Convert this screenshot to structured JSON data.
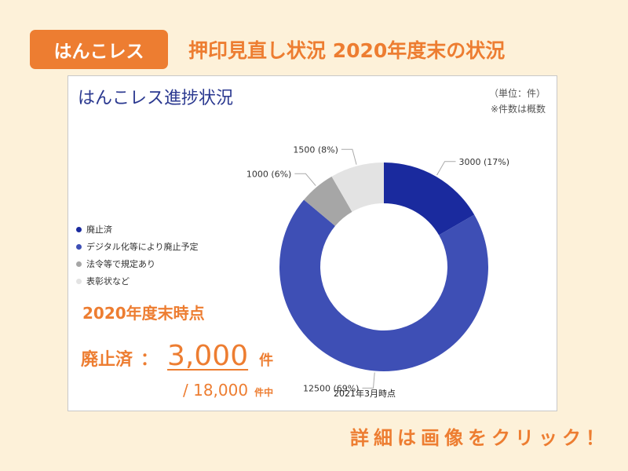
{
  "badge": {
    "label": "はんこレス"
  },
  "headline": "押印見直し状況 2020年度末の状況",
  "panel": {
    "title": "はんこレス進捗状況",
    "unit_line1": "（単位：件）",
    "unit_line2": "※件数は概数",
    "caption": "2021年3月時点"
  },
  "summary": {
    "heading": "2020年度末時点",
    "label": "廃止済",
    "colon": "：",
    "value": "3,000",
    "unit": "件",
    "total_value": "/ 18,000",
    "total_unit": "件中"
  },
  "cta": "詳細は画像をクリック！",
  "chart_data": {
    "type": "pie",
    "categories": [
      "廃止済",
      "デジタル化等により廃止予定",
      "法令等で規定あり",
      "表彰状など"
    ],
    "values": [
      3000,
      12500,
      1000,
      1500
    ],
    "data_labels": [
      "3000 (17%)",
      "12500 (69%)",
      "1000 (6%)",
      "1500 (8%)"
    ],
    "colors": [
      "#1a2a9e",
      "#3e4fb5",
      "#a6a6a6",
      "#e3e3e3"
    ],
    "legend_position": "left",
    "donut": true
  }
}
